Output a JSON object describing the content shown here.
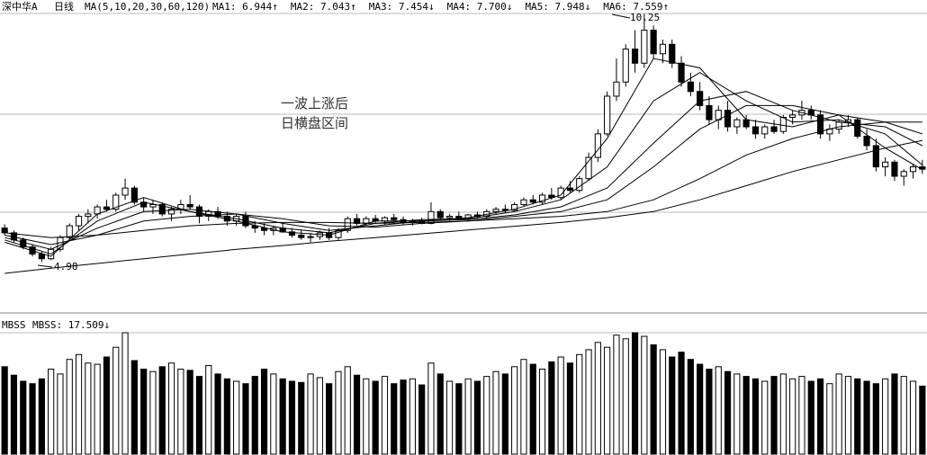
{
  "chart_data": {
    "type": "candlestick",
    "title": "深中华A",
    "period": "日线",
    "indicator": "MA(5,10,20,30,60,120)",
    "ylim": [
      3.9,
      10.35
    ],
    "xlim": [
      -0.5,
      99.5
    ],
    "annotations": [
      "4.98",
      "10.25",
      "一波上涨后",
      "日横盘区间"
    ],
    "ohlc": [
      [
        5.7,
        5.78,
        5.55,
        5.6
      ],
      [
        5.6,
        5.65,
        5.4,
        5.45
      ],
      [
        5.45,
        5.5,
        5.25,
        5.3
      ],
      [
        5.3,
        5.35,
        5.1,
        5.15
      ],
      [
        5.15,
        5.2,
        4.98,
        5.05
      ],
      [
        5.05,
        5.3,
        5.02,
        5.25
      ],
      [
        5.25,
        5.55,
        5.2,
        5.5
      ],
      [
        5.5,
        5.8,
        5.45,
        5.75
      ],
      [
        5.75,
        6.0,
        5.65,
        5.95
      ],
      [
        5.95,
        6.1,
        5.8,
        6.0
      ],
      [
        6.0,
        6.2,
        5.9,
        6.15
      ],
      [
        6.15,
        6.3,
        6.05,
        6.1
      ],
      [
        6.1,
        6.45,
        6.05,
        6.4
      ],
      [
        6.4,
        6.75,
        6.3,
        6.55
      ],
      [
        6.55,
        6.6,
        6.2,
        6.25
      ],
      [
        6.25,
        6.35,
        6.05,
        6.15
      ],
      [
        6.15,
        6.3,
        6.0,
        6.2
      ],
      [
        6.2,
        6.25,
        5.95,
        6.0
      ],
      [
        6.0,
        6.15,
        5.85,
        6.1
      ],
      [
        6.1,
        6.3,
        6.0,
        6.2
      ],
      [
        6.2,
        6.4,
        6.1,
        6.15
      ],
      [
        6.15,
        6.2,
        5.8,
        5.95
      ],
      [
        5.95,
        6.1,
        5.85,
        6.05
      ],
      [
        6.05,
        6.15,
        5.9,
        5.95
      ],
      [
        5.95,
        6.05,
        5.75,
        5.85
      ],
      [
        5.85,
        6.0,
        5.75,
        5.95
      ],
      [
        5.95,
        6.05,
        5.7,
        5.75
      ],
      [
        5.75,
        5.85,
        5.6,
        5.7
      ],
      [
        5.7,
        5.8,
        5.55,
        5.65
      ],
      [
        5.65,
        5.75,
        5.55,
        5.7
      ],
      [
        5.7,
        5.8,
        5.6,
        5.62
      ],
      [
        5.62,
        5.7,
        5.5,
        5.55
      ],
      [
        5.55,
        5.65,
        5.45,
        5.5
      ],
      [
        5.5,
        5.6,
        5.4,
        5.52
      ],
      [
        5.52,
        5.65,
        5.45,
        5.6
      ],
      [
        5.6,
        5.7,
        5.45,
        5.5
      ],
      [
        5.5,
        5.7,
        5.45,
        5.65
      ],
      [
        5.65,
        5.95,
        5.6,
        5.9
      ],
      [
        5.9,
        6.0,
        5.75,
        5.8
      ],
      [
        5.8,
        5.95,
        5.75,
        5.9
      ],
      [
        5.9,
        5.98,
        5.8,
        5.85
      ],
      [
        5.85,
        5.95,
        5.78,
        5.92
      ],
      [
        5.92,
        6.0,
        5.82,
        5.88
      ],
      [
        5.88,
        5.95,
        5.78,
        5.82
      ],
      [
        5.82,
        5.9,
        5.75,
        5.85
      ],
      [
        5.85,
        5.92,
        5.78,
        5.8
      ],
      [
        5.8,
        6.25,
        5.78,
        6.05
      ],
      [
        6.05,
        6.1,
        5.88,
        5.92
      ],
      [
        5.92,
        6.0,
        5.85,
        5.95
      ],
      [
        5.95,
        6.05,
        5.88,
        5.9
      ],
      [
        5.9,
        6.0,
        5.85,
        5.98
      ],
      [
        5.98,
        6.05,
        5.9,
        5.95
      ],
      [
        5.95,
        6.1,
        5.9,
        6.05
      ],
      [
        6.05,
        6.15,
        5.98,
        6.1
      ],
      [
        6.1,
        6.2,
        6.02,
        6.08
      ],
      [
        6.08,
        6.25,
        6.05,
        6.2
      ],
      [
        6.2,
        6.35,
        6.15,
        6.3
      ],
      [
        6.3,
        6.4,
        6.2,
        6.25
      ],
      [
        6.25,
        6.45,
        6.2,
        6.4
      ],
      [
        6.4,
        6.55,
        6.3,
        6.35
      ],
      [
        6.35,
        6.6,
        6.3,
        6.55
      ],
      [
        6.55,
        6.7,
        6.45,
        6.5
      ],
      [
        6.5,
        6.8,
        6.45,
        6.75
      ],
      [
        6.75,
        7.3,
        6.7,
        7.2
      ],
      [
        7.2,
        7.8,
        7.1,
        7.7
      ],
      [
        7.7,
        8.6,
        7.65,
        8.5
      ],
      [
        8.5,
        9.3,
        8.4,
        8.8
      ],
      [
        8.8,
        9.6,
        8.7,
        9.5
      ],
      [
        9.5,
        9.9,
        9.0,
        9.2
      ],
      [
        9.2,
        10.25,
        9.1,
        9.9
      ],
      [
        9.9,
        10.0,
        9.3,
        9.4
      ],
      [
        9.4,
        9.7,
        9.2,
        9.6
      ],
      [
        9.6,
        9.7,
        9.1,
        9.2
      ],
      [
        9.2,
        9.35,
        8.7,
        8.8
      ],
      [
        8.8,
        9.0,
        8.5,
        8.6
      ],
      [
        8.6,
        8.8,
        8.2,
        8.3
      ],
      [
        8.3,
        8.5,
        7.9,
        8.0
      ],
      [
        8.0,
        8.3,
        7.8,
        8.2
      ],
      [
        8.2,
        8.4,
        7.75,
        7.85
      ],
      [
        7.85,
        8.05,
        7.7,
        8.0
      ],
      [
        8.0,
        8.1,
        7.8,
        7.85
      ],
      [
        7.85,
        8.0,
        7.6,
        7.7
      ],
      [
        7.7,
        7.9,
        7.6,
        7.85
      ],
      [
        7.85,
        8.0,
        7.7,
        7.75
      ],
      [
        7.75,
        8.1,
        7.7,
        8.05
      ],
      [
        8.05,
        8.2,
        7.9,
        8.1
      ],
      [
        8.1,
        8.4,
        8.0,
        8.2
      ],
      [
        8.2,
        8.3,
        8.0,
        8.1
      ],
      [
        8.1,
        8.2,
        7.6,
        7.7
      ],
      [
        7.7,
        7.9,
        7.55,
        7.8
      ],
      [
        7.8,
        8.0,
        7.7,
        7.95
      ],
      [
        7.95,
        8.1,
        7.85,
        8.0
      ],
      [
        8.0,
        8.05,
        7.6,
        7.65
      ],
      [
        7.65,
        7.8,
        7.35,
        7.45
      ],
      [
        7.45,
        7.6,
        6.9,
        7.0
      ],
      [
        7.0,
        7.2,
        6.8,
        7.1
      ],
      [
        7.1,
        7.15,
        6.7,
        6.8
      ],
      [
        6.8,
        6.95,
        6.6,
        6.9
      ],
      [
        6.9,
        7.05,
        6.75,
        7.0
      ],
      [
        7.0,
        7.15,
        6.85,
        6.95
      ]
    ],
    "ma_x": [
      0,
      5,
      10,
      15,
      20,
      25,
      30,
      35,
      40,
      45,
      50,
      55,
      60,
      65,
      70,
      75,
      80,
      85,
      90,
      95,
      99
    ],
    "series": [
      {
        "name": "MA1: 6.944↑",
        "color": "#000",
        "values": [
          5.4,
          5.1,
          6.0,
          6.35,
          6.05,
          5.85,
          5.62,
          5.55,
          5.85,
          5.85,
          5.92,
          6.1,
          6.4,
          7.6,
          9.3,
          9.1,
          8.0,
          7.85,
          8.1,
          7.4,
          6.94
        ]
      },
      {
        "name": "MA2: 7.043↑",
        "color": "#000",
        "values": [
          5.45,
          5.15,
          5.85,
          6.25,
          6.05,
          5.9,
          5.7,
          5.6,
          5.8,
          5.88,
          5.9,
          6.05,
          6.3,
          7.0,
          8.4,
          9.0,
          8.4,
          7.95,
          8.0,
          7.7,
          7.04
        ]
      },
      {
        "name": "MA3: 7.454↓",
        "color": "#000",
        "values": [
          5.5,
          5.25,
          5.7,
          6.05,
          6.1,
          6.0,
          5.8,
          5.65,
          5.75,
          5.85,
          5.88,
          5.98,
          6.15,
          6.55,
          7.5,
          8.4,
          8.6,
          8.2,
          7.95,
          7.85,
          7.45
        ]
      },
      {
        "name": "MA4: 7.700↓",
        "color": "#000",
        "values": [
          5.55,
          5.35,
          5.55,
          5.85,
          5.95,
          6.0,
          5.9,
          5.75,
          5.72,
          5.8,
          5.85,
          5.95,
          6.05,
          6.3,
          7.0,
          7.8,
          8.3,
          8.3,
          8.1,
          7.95,
          7.7
        ]
      },
      {
        "name": "MA5: 7.948↓",
        "color": "#000",
        "values": [
          5.6,
          5.5,
          5.55,
          5.65,
          5.75,
          5.8,
          5.82,
          5.82,
          5.8,
          5.82,
          5.85,
          5.9,
          5.95,
          6.05,
          6.3,
          6.75,
          7.25,
          7.6,
          7.85,
          7.95,
          7.95
        ]
      },
      {
        "name": "MA6: 7.559↑",
        "color": "#000",
        "values": [
          4.74,
          4.85,
          4.95,
          5.05,
          5.15,
          5.25,
          5.33,
          5.42,
          5.5,
          5.58,
          5.66,
          5.74,
          5.82,
          5.92,
          6.05,
          6.3,
          6.6,
          6.9,
          7.15,
          7.4,
          7.56
        ]
      }
    ],
    "volume_title": "MBSS",
    "volume_label": "MBSS: 17.509↓",
    "vlim": [
      0,
      100
    ],
    "volume": [
      72,
      65,
      60,
      58,
      62,
      70,
      66,
      78,
      82,
      75,
      74,
      80,
      88,
      100,
      77,
      70,
      68,
      72,
      75,
      70,
      69,
      64,
      73,
      66,
      62,
      60,
      58,
      64,
      70,
      66,
      62,
      60,
      59,
      66,
      63,
      58,
      68,
      72,
      65,
      62,
      60,
      64,
      58,
      61,
      62,
      57,
      75,
      66,
      60,
      58,
      62,
      60,
      64,
      68,
      66,
      72,
      78,
      74,
      70,
      76,
      80,
      75,
      82,
      86,
      92,
      88,
      98,
      95,
      100,
      97,
      90,
      86,
      80,
      84,
      78,
      74,
      70,
      72,
      68,
      66,
      64,
      62,
      60,
      64,
      66,
      62,
      64,
      60,
      62,
      58,
      66,
      64,
      62,
      60,
      58,
      62,
      66,
      64,
      60,
      56
    ]
  }
}
